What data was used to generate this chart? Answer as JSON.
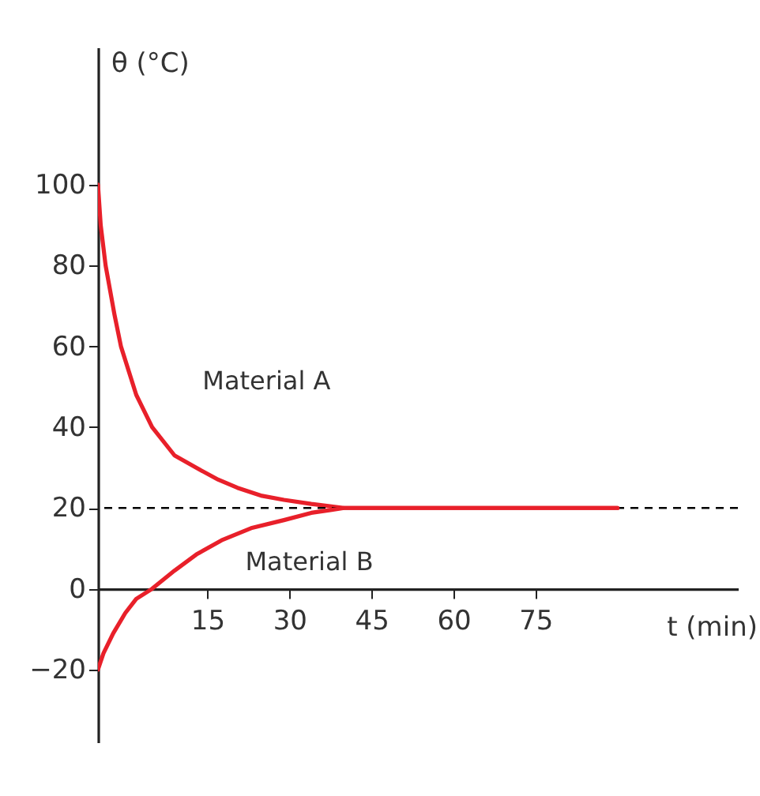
{
  "chart_data": {
    "type": "line",
    "xlabel": "t (min)",
    "ylabel": "θ (°C)",
    "xlim": [
      -5,
      112
    ],
    "ylim": [
      -38,
      134
    ],
    "xticks": [
      15,
      30,
      45,
      60,
      75
    ],
    "yticks": [
      {
        "value": -20,
        "label": "−20"
      },
      0,
      20,
      40,
      60,
      80,
      100
    ],
    "grid": false,
    "line_style": "solid",
    "marker": "none",
    "series": [
      {
        "name": "Material A",
        "color": "#e8202a",
        "x": [
          -5,
          -4.5,
          -3.6,
          -2,
          -0.8,
          2,
          4.9,
          9,
          12.9,
          17,
          20.5,
          25,
          29,
          34,
          40,
          50,
          60,
          70,
          80,
          90
        ],
        "values": [
          100,
          90,
          80,
          68,
          60,
          48,
          40,
          33,
          30,
          27,
          25,
          23,
          22,
          21,
          20,
          20,
          20,
          20,
          20,
          20
        ]
      },
      {
        "name": "Material B",
        "color": "#e8202a",
        "x": [
          -5,
          -4,
          -2.2,
          0,
          2,
          4.9,
          9,
          13,
          17.6,
          23,
          29,
          34,
          37.5,
          40,
          50,
          60,
          70,
          80,
          90
        ],
        "values": [
          -20,
          -16,
          -11,
          -6,
          -2.5,
          0,
          4.5,
          8.5,
          12,
          15,
          17,
          18.8,
          19.5,
          20,
          20,
          20,
          20,
          20,
          20
        ]
      }
    ],
    "ref_lines": [
      {
        "axis": "y",
        "value": 20,
        "color": "#000000",
        "line_style": "dashed"
      }
    ]
  }
}
